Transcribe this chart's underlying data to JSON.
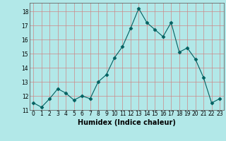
{
  "x": [
    0,
    1,
    2,
    3,
    4,
    5,
    6,
    7,
    8,
    9,
    10,
    11,
    12,
    13,
    14,
    15,
    16,
    17,
    18,
    19,
    20,
    21,
    22,
    23
  ],
  "y": [
    11.5,
    11.2,
    11.8,
    12.5,
    12.2,
    11.7,
    12.0,
    11.8,
    13.0,
    13.5,
    14.7,
    15.5,
    16.8,
    18.2,
    17.2,
    16.7,
    16.2,
    17.2,
    15.1,
    15.4,
    14.6,
    13.3,
    11.5,
    11.8
  ],
  "xlabel": "Humidex (Indice chaleur)",
  "line_color": "#006060",
  "marker": "D",
  "marker_size": 2.5,
  "background_color": "#b2e8e8",
  "grid_color": "#cc8888",
  "ylim": [
    11,
    18.6
  ],
  "xlim": [
    -0.5,
    23.5
  ],
  "yticks": [
    11,
    12,
    13,
    14,
    15,
    16,
    17,
    18
  ],
  "xticks": [
    0,
    1,
    2,
    3,
    4,
    5,
    6,
    7,
    8,
    9,
    10,
    11,
    12,
    13,
    14,
    15,
    16,
    17,
    18,
    19,
    20,
    21,
    22,
    23
  ],
  "tick_fontsize": 5.5,
  "xlabel_fontsize": 7
}
